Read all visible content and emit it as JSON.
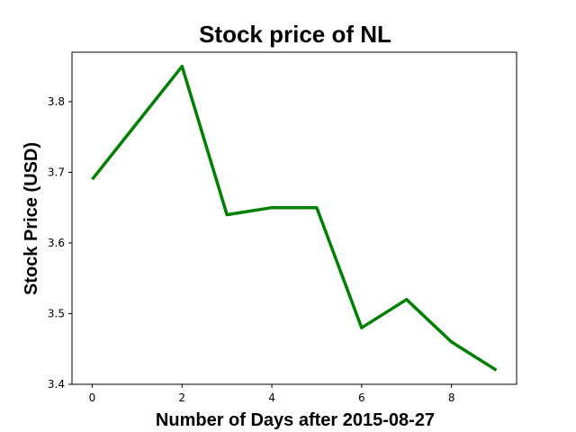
{
  "chart_data": {
    "type": "line",
    "title": "Stock price of NL",
    "xlabel": "Number of Days after 2015-08-27",
    "ylabel": "Stock Price (USD)",
    "x": [
      0,
      1,
      2,
      3,
      4,
      5,
      6,
      7,
      8,
      9
    ],
    "series": [
      {
        "values": [
          3.69,
          3.77,
          3.85,
          3.64,
          3.65,
          3.65,
          3.48,
          3.52,
          3.46,
          3.42
        ],
        "color": "#008000"
      }
    ],
    "xlim": [
      -0.45,
      9.45
    ],
    "ylim": [
      3.4,
      3.87
    ],
    "xticks": [
      0,
      2,
      4,
      6,
      8
    ],
    "yticks": [
      3.4,
      3.5,
      3.6,
      3.7,
      3.8
    ],
    "xtick_labels": [
      "0",
      "2",
      "4",
      "6",
      "8"
    ],
    "ytick_labels": [
      "3.4",
      "3.5",
      "3.6",
      "3.7",
      "3.8"
    ],
    "grid": false
  }
}
